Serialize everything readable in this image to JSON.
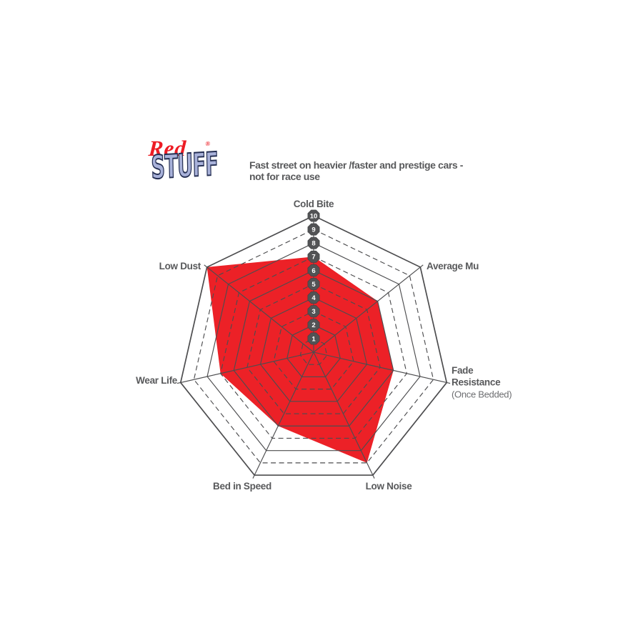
{
  "page": {
    "background": "#ffffff"
  },
  "logo": {
    "line1": "Red",
    "registered": "®",
    "line2": "STUFF",
    "red_color": "#ed1c24",
    "stuff_fill": "#a9b2da",
    "stuff_outline": "#242e52"
  },
  "header": {
    "tagline_line1": "Fast street on heavier /faster and prestige cars -",
    "tagline_line2": "not for race use",
    "color": "#58595b"
  },
  "chart_data": {
    "type": "radar",
    "title": "RedStuff pad performance ratings",
    "axes": [
      "Cold Bite",
      "Average Mu",
      "Fade Resistance",
      "Low Noise",
      "Bed in Speed",
      "Wear Life",
      "Low Dust"
    ],
    "axis_sublabels": {
      "Fade Resistance": "(Once Bedded)"
    },
    "series": [
      {
        "name": "RedStuff",
        "values": [
          7,
          6,
          6,
          9,
          6,
          7,
          10
        ],
        "fill": "#ec2127"
      }
    ],
    "scale": {
      "min": 0,
      "max": 10,
      "ring_step": 1,
      "marker_values": [
        1,
        2,
        3,
        4,
        5,
        6,
        7,
        8,
        9,
        10
      ],
      "markers_on_axis": "Cold Bite"
    },
    "grid": {
      "color": "#4d4d4f",
      "solid_rings": "even",
      "dashed_rings": "odd",
      "legend": "none"
    },
    "badge": {
      "fill": "#525355",
      "text_color": "#ffffff"
    },
    "label_color": "#58595b",
    "sublabel_color": "#6d6e71"
  }
}
